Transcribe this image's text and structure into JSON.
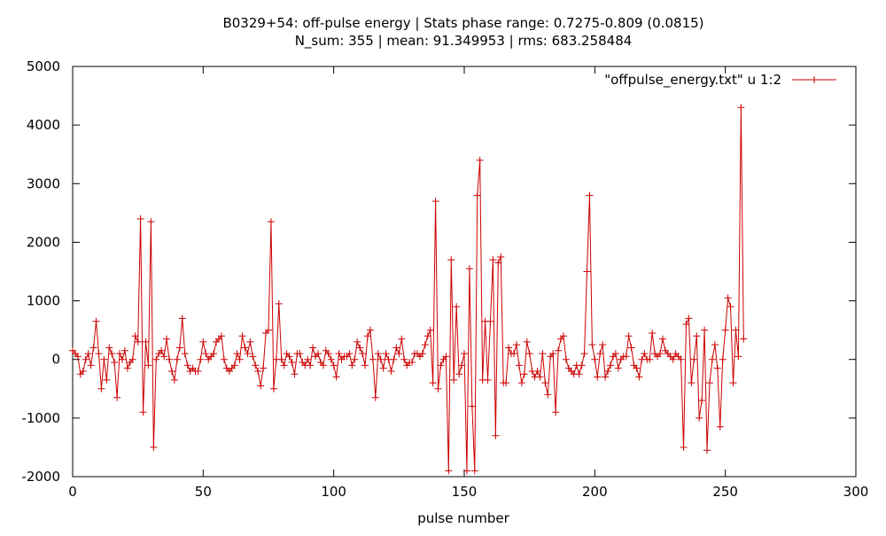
{
  "chart_data": {
    "type": "line",
    "title": "B0329+54: off-pulse energy | Stats phase range: 0.7275-0.809 (0.0815)",
    "subtitle": "N_sum: 355 | mean: 91.349953 | rms: 683.258484",
    "xlabel": "pulse number",
    "ylabel": "",
    "xlim": [
      0,
      300
    ],
    "ylim": [
      -2000,
      5000
    ],
    "x_ticks": [
      0,
      50,
      100,
      150,
      200,
      250,
      300
    ],
    "x_tick_labels": [
      "0",
      "50",
      "100",
      "150",
      "200",
      "250",
      "300"
    ],
    "y_ticks": [
      -2000,
      -1000,
      0,
      1000,
      2000,
      3000,
      4000,
      5000
    ],
    "y_tick_labels": [
      "-2000",
      "-1000",
      "0",
      "1000",
      "2000",
      "3000",
      "4000",
      "5000"
    ],
    "grid": false,
    "legend_position": "top-right",
    "series": [
      {
        "name": "\"offpulse_energy.txt\" u 1:2",
        "color": "#cc0000",
        "marker": "plus",
        "y": [
          150,
          100,
          50,
          -250,
          -200,
          0,
          100,
          -100,
          200,
          650,
          100,
          -500,
          0,
          -350,
          200,
          100,
          -50,
          -650,
          100,
          0,
          150,
          -150,
          -50,
          0,
          400,
          300,
          2400,
          -900,
          300,
          -100,
          2350,
          -1500,
          0,
          100,
          150,
          50,
          350,
          0,
          -200,
          -350,
          0,
          200,
          700,
          100,
          -100,
          -200,
          -150,
          -200,
          -200,
          0,
          300,
          100,
          0,
          50,
          100,
          300,
          350,
          400,
          0,
          -150,
          -200,
          -150,
          -100,
          100,
          0,
          400,
          200,
          100,
          300,
          50,
          -100,
          -200,
          -450,
          -150,
          450,
          500,
          2350,
          -500,
          0,
          950,
          0,
          -100,
          100,
          50,
          -50,
          -250,
          100,
          100,
          -50,
          -100,
          0,
          -100,
          200,
          50,
          100,
          -50,
          -100,
          150,
          100,
          0,
          -100,
          -300,
          100,
          0,
          50,
          50,
          100,
          -100,
          0,
          300,
          200,
          100,
          -100,
          400,
          500,
          0,
          -650,
          100,
          0,
          -150,
          100,
          0,
          -200,
          0,
          200,
          100,
          350,
          0,
          -100,
          -50,
          -50,
          100,
          100,
          50,
          100,
          250,
          400,
          500,
          -400,
          2700,
          -500,
          -100,
          0,
          50,
          -1900,
          1700,
          -350,
          900,
          -250,
          -100,
          100,
          -1900,
          1550,
          -800,
          -1900,
          2800,
          3400,
          -350,
          650,
          -350,
          650,
          1700,
          -1300,
          1650,
          1750,
          -400,
          -400,
          200,
          100,
          100,
          250,
          -100,
          -400,
          -250,
          300,
          100,
          -200,
          -300,
          -200,
          -300,
          100,
          -400,
          -600,
          50,
          100,
          -900,
          150,
          350,
          400,
          0,
          -150,
          -200,
          -250,
          -100,
          -250,
          -100,
          100,
          1500,
          2800,
          250,
          0,
          -300,
          100,
          250,
          -300,
          -200,
          -100,
          50,
          100,
          -150,
          0,
          50,
          50,
          400,
          200,
          -100,
          -150,
          -300,
          0,
          100,
          0,
          0,
          450,
          100,
          50,
          100,
          350,
          150,
          100,
          50,
          0,
          100,
          50,
          0,
          -1500,
          600,
          700,
          -400,
          0,
          400,
          -1000,
          -700,
          500,
          -1550,
          -400,
          0,
          250,
          -150,
          -1150,
          0,
          500,
          1050,
          900,
          -400,
          500,
          50,
          4300,
          350
        ]
      }
    ]
  }
}
